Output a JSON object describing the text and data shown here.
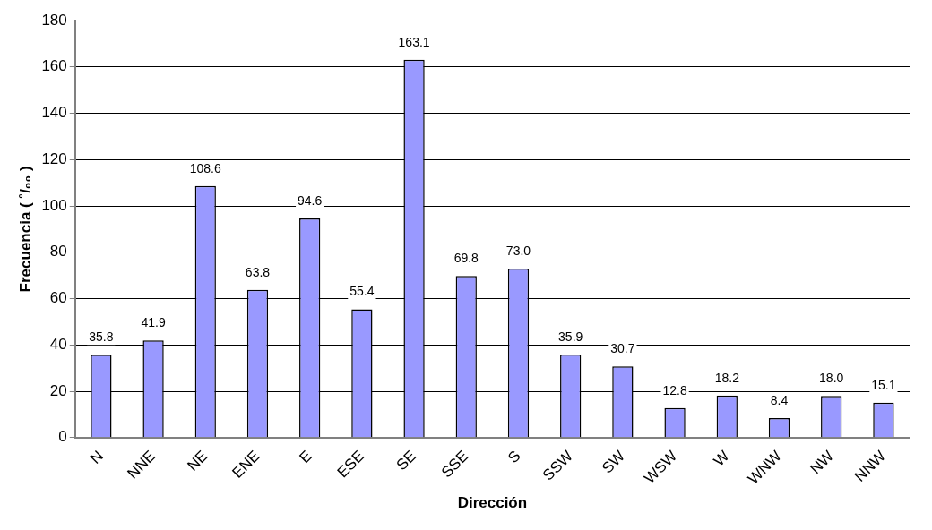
{
  "chart_data": {
    "type": "bar",
    "xlabel": "Dirección",
    "ylabel": "Frecuencia ( ˚/₀₀ )",
    "categories": [
      "N",
      "NNE",
      "NE",
      "ENE",
      "E",
      "ESE",
      "SE",
      "SSE",
      "S",
      "SSW",
      "SW",
      "WSW",
      "W",
      "WNW",
      "NW",
      "NNW"
    ],
    "values": [
      35.8,
      41.9,
      108.6,
      63.8,
      94.6,
      55.4,
      163.1,
      69.8,
      73.0,
      35.9,
      30.7,
      12.8,
      18.2,
      8.4,
      18.0,
      15.1
    ],
    "value_labels": [
      "35.8",
      "41.9",
      "108.6",
      "63.8",
      "94.6",
      "55.4",
      "163.1",
      "69.8",
      "73.0",
      "35.9",
      "30.7",
      "12.8",
      "18.2",
      "8.4",
      "18.0",
      "15.1"
    ],
    "color": "#9999ff",
    "ylim": [
      0,
      180
    ],
    "yticks": [
      0,
      20,
      40,
      60,
      80,
      100,
      120,
      140,
      160,
      180
    ],
    "grid": "y",
    "legend": false
  }
}
